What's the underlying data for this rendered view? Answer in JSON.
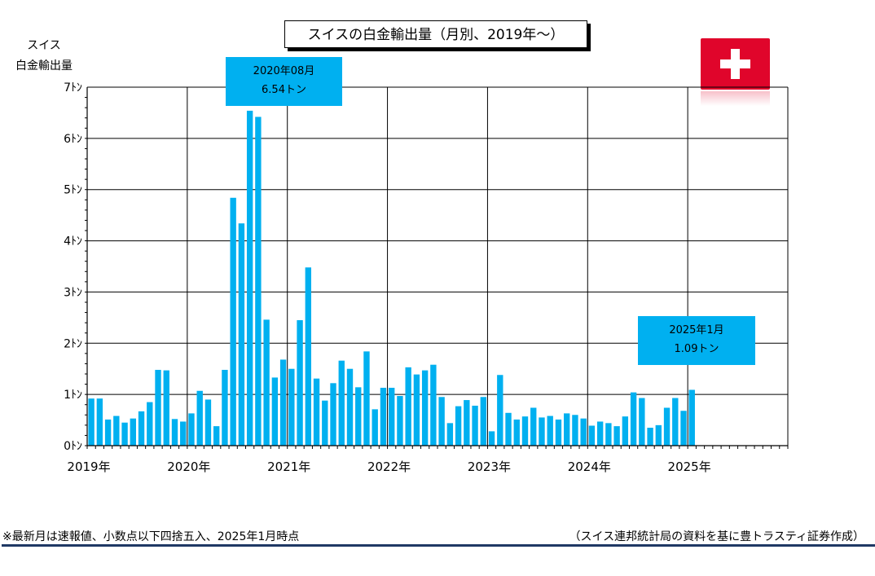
{
  "title": "スイスの白金輸出量（月別、2019年～）",
  "y_axis_label_line1": "スイス",
  "y_axis_label_line2": "白金輸出量",
  "callouts": {
    "peak": {
      "line1": "2020年08月",
      "line2": "6.54トン"
    },
    "latest": {
      "line1": "2025年1月",
      "line2": "1.09トン"
    }
  },
  "footnote": "※最新月は速報値、小数点以下四捨五入、2025年1月時点",
  "source": "（スイス連邦統計局の資料を基に豊トラスティ証券作成）",
  "colors": {
    "bar": "#00b0f0",
    "flag": "#e0052b",
    "footer_rule": "#1f3864"
  },
  "icons": {
    "flag": "swiss-flag-icon"
  },
  "chart_data": {
    "type": "bar",
    "ylabel": "スイス 白金輸出量",
    "ylim": [
      0,
      7
    ],
    "y_ticks": [
      0,
      1,
      2,
      3,
      4,
      5,
      6,
      7
    ],
    "y_tick_labels": [
      "0ﾄﾝ",
      "1ﾄﾝ",
      "2ﾄﾝ",
      "3ﾄﾝ",
      "4ﾄﾝ",
      "5ﾄﾝ",
      "6ﾄﾝ",
      "7ﾄﾝ"
    ],
    "x_labels": [
      "2019年",
      "2020年",
      "2021年",
      "2022年",
      "2023年",
      "2024年",
      "2025年"
    ],
    "x_start": "2019-01",
    "x_end": "2025-12",
    "grid": true,
    "series": [
      {
        "values": [
          0.92,
          0.92,
          0.51,
          0.58,
          0.45,
          0.53,
          0.67,
          0.85,
          1.48,
          1.47,
          0.52,
          0.47,
          0.63,
          1.07,
          0.9,
          0.38,
          1.48,
          4.84,
          4.34,
          6.54,
          6.42,
          2.46,
          1.33,
          1.68,
          1.5,
          2.45,
          3.48,
          1.31,
          0.88,
          1.22,
          1.66,
          1.5,
          1.14,
          1.84,
          0.71,
          1.13,
          1.13,
          0.97,
          1.53,
          1.39,
          1.47,
          1.58,
          0.95,
          0.44,
          0.77,
          0.89,
          0.78,
          0.95,
          0.28,
          1.38,
          0.64,
          0.51,
          0.57,
          0.74,
          0.55,
          0.58,
          0.51,
          0.63,
          0.6,
          0.53,
          0.39,
          0.47,
          0.44,
          0.38,
          0.57,
          1.04,
          0.93,
          0.35,
          0.4,
          0.74,
          0.93,
          0.68,
          1.09
        ]
      }
    ]
  }
}
